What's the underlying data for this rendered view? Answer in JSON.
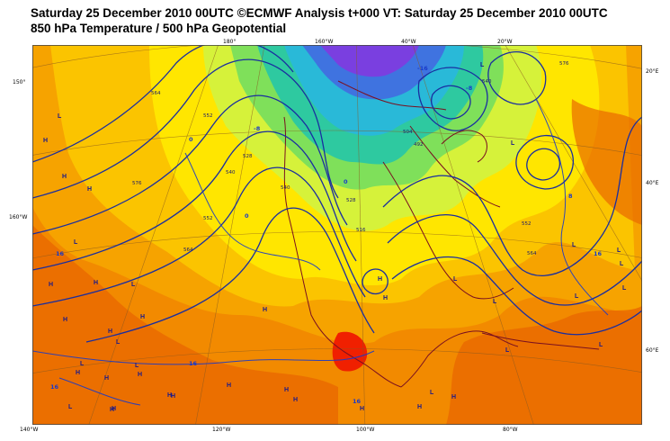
{
  "header": {
    "title": "Saturday 25 December 2010 00UTC ©ECMWF Analysis t+000 VT: Saturday 25 December 2010 00UTC",
    "subtitle": "850 hPa Temperature / 500 hPa Geopotential"
  },
  "map": {
    "top_lon_labels": [
      "180°",
      "160°W",
      "40°W",
      "20°W"
    ],
    "left_lat_labels": [
      "150°",
      "160°W"
    ],
    "right_lat_labels": [
      "20°E",
      "40°E",
      "60°E"
    ],
    "bottom_lon_labels": [
      "140°W",
      "120°W",
      "100°W",
      "80°W"
    ],
    "pressure_centers": {
      "highs": [
        "H",
        "H",
        "H",
        "H",
        "H",
        "H",
        "H",
        "H",
        "H",
        "H",
        "H",
        "H",
        "H",
        "H",
        "H",
        "H",
        "H",
        "H",
        "H",
        "H",
        "H",
        "H",
        "H",
        "H"
      ],
      "lows": [
        "L",
        "L",
        "L",
        "L",
        "L",
        "L",
        "L",
        "L",
        "L",
        "L",
        "L",
        "L",
        "L",
        "L",
        "L",
        "L",
        "L",
        "L",
        "L"
      ]
    },
    "contour_labels": {
      "geopotential": [
        "564",
        "552",
        "540",
        "528",
        "576",
        "564",
        "552",
        "540",
        "528",
        "516",
        "504",
        "492",
        "540",
        "552",
        "564",
        "576"
      ],
      "temperature": [
        "0",
        "-8",
        "-16",
        "0",
        "16",
        "16",
        "16",
        "16",
        "-8",
        "0",
        "8",
        "16"
      ]
    },
    "colors": {
      "warm_orange": "#f28a00",
      "orange": "#f6a300",
      "light_orange": "#fbc400",
      "yellow": "#ffe600",
      "yellow_green": "#d6f23a",
      "green": "#7fe05a",
      "teal": "#2ec9a0",
      "cyan": "#29b9d8",
      "blue": "#3f73e0",
      "violet": "#7a3fe0",
      "dark_orange": "#ea6a00",
      "red": "#f02000",
      "contour_blue": "#1a2ea0",
      "coast": "#7a1020"
    }
  }
}
